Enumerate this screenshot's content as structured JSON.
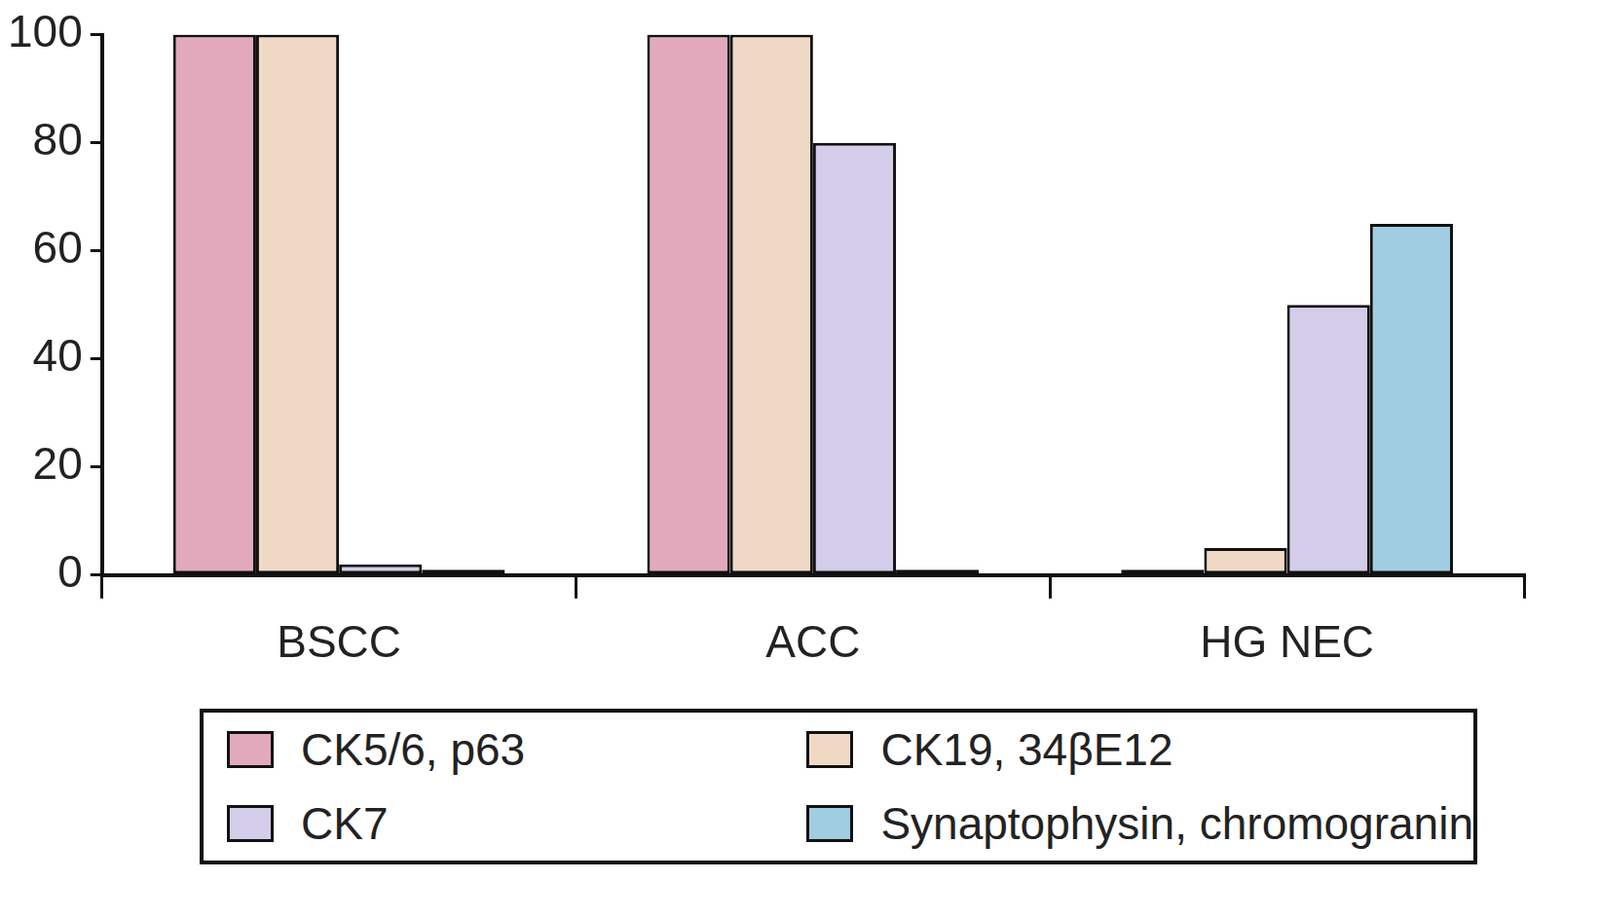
{
  "chart_data": {
    "type": "bar",
    "categories": [
      "BSCC",
      "ACC",
      "HG NEC"
    ],
    "series": [
      {
        "name": "CK5/6, p63",
        "color": "#e2a9bd",
        "values": [
          100,
          100,
          1
        ]
      },
      {
        "name": "CK19, 34βE12",
        "color": "#f0d9c4",
        "values": [
          100,
          100,
          5
        ]
      },
      {
        "name": "CK7",
        "color": "#d3cde9",
        "values": [
          2,
          80,
          50
        ]
      },
      {
        "name": "Synaptophysin, chromogranin",
        "color": "#a0cde1",
        "values": [
          1,
          1,
          65
        ]
      }
    ],
    "ylim": [
      0,
      100
    ],
    "yticks": [
      0,
      20,
      40,
      60,
      80,
      100
    ],
    "grid": false,
    "legend": "bottom"
  }
}
